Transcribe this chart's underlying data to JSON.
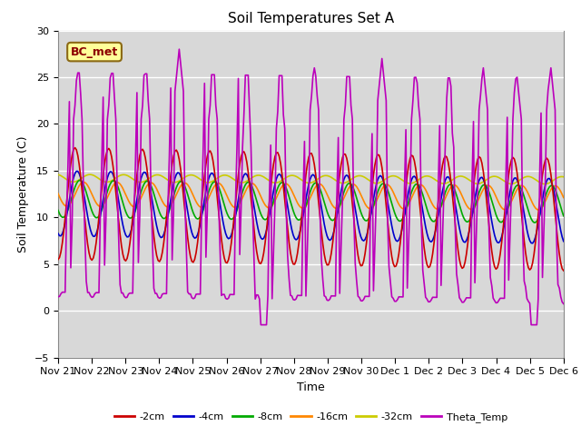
{
  "title": "Soil Temperatures Set A",
  "xlabel": "Time",
  "ylabel": "Soil Temperature (C)",
  "annotation": "BC_met",
  "ylim": [
    -5,
    30
  ],
  "series_colors": {
    "-2cm": "#cc0000",
    "-4cm": "#0000cc",
    "-8cm": "#00aa00",
    "-16cm": "#ff8800",
    "-32cm": "#cccc00",
    "Theta_Temp": "#bb00bb"
  },
  "bg_color": "#d8d8d8",
  "tick_labels": [
    "Nov 21",
    "Nov 22",
    "Nov 23",
    "Nov 24",
    "Nov 25",
    "Nov 26",
    "Nov 27",
    "Nov 28",
    "Nov 29",
    "Nov 30",
    "Dec 1",
    "Dec 2",
    "Dec 3",
    "Dec 4",
    "Dec 5",
    "Dec 6"
  ],
  "yticks": [
    -5,
    0,
    5,
    10,
    15,
    20,
    25,
    30
  ],
  "n_days": 15
}
